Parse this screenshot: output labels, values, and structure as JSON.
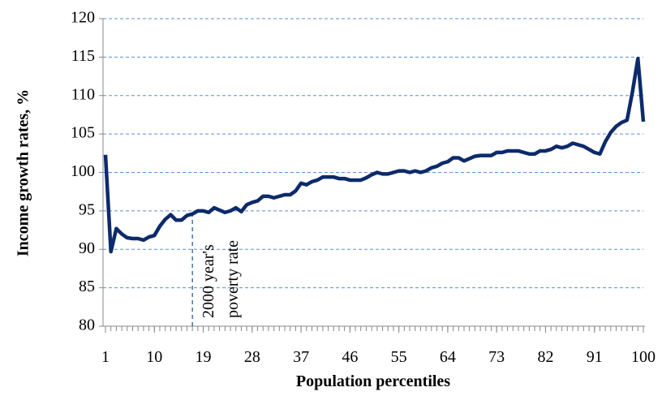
{
  "chart_data": {
    "type": "line",
    "x_label": "Population percentiles",
    "y_label": "Income growth  rates, %",
    "x": [
      1,
      2,
      3,
      4,
      5,
      6,
      7,
      8,
      9,
      10,
      11,
      12,
      13,
      14,
      15,
      16,
      17,
      18,
      19,
      20,
      21,
      22,
      23,
      24,
      25,
      26,
      27,
      28,
      29,
      30,
      31,
      32,
      33,
      34,
      35,
      36,
      37,
      38,
      39,
      40,
      41,
      42,
      43,
      44,
      45,
      46,
      47,
      48,
      49,
      50,
      51,
      52,
      53,
      54,
      55,
      56,
      57,
      58,
      59,
      60,
      61,
      62,
      63,
      64,
      65,
      66,
      67,
      68,
      69,
      70,
      71,
      72,
      73,
      74,
      75,
      76,
      77,
      78,
      79,
      80,
      81,
      82,
      83,
      84,
      85,
      86,
      87,
      88,
      89,
      90,
      91,
      92,
      93,
      94,
      95,
      96,
      97,
      98,
      99,
      100
    ],
    "series": [
      {
        "color": "#0d2a6a",
        "values": [
          102.3,
          89.7,
          92.7,
          92.0,
          91.5,
          91.4,
          91.4,
          91.2,
          91.6,
          91.8,
          93.0,
          93.9,
          94.5,
          93.8,
          93.8,
          94.4,
          94.6,
          95.0,
          95.0,
          94.8,
          95.4,
          95.1,
          94.8,
          95.0,
          95.4,
          94.9,
          95.8,
          96.1,
          96.3,
          96.9,
          96.9,
          96.7,
          96.9,
          97.1,
          97.1,
          97.6,
          98.6,
          98.4,
          98.8,
          99.0,
          99.4,
          99.4,
          99.4,
          99.2,
          99.2,
          99.0,
          99.0,
          99.0,
          99.3,
          99.7,
          100.0,
          99.8,
          99.8,
          100.0,
          100.2,
          100.2,
          100.0,
          100.2,
          100.0,
          100.2,
          100.6,
          100.8,
          101.2,
          101.4,
          101.9,
          101.9,
          101.5,
          101.8,
          102.1,
          102.2,
          102.2,
          102.2,
          102.6,
          102.6,
          102.8,
          102.8,
          102.8,
          102.6,
          102.4,
          102.4,
          102.8,
          102.8,
          103.0,
          103.4,
          103.2,
          103.4,
          103.8,
          103.6,
          103.4,
          103.0,
          102.6,
          102.4,
          104.0,
          105.2,
          106.0,
          106.5,
          106.8,
          110.5,
          114.8,
          106.6
        ]
      }
    ],
    "xlim": [
      1,
      100
    ],
    "xticks": [
      1,
      10,
      19,
      28,
      37,
      46,
      55,
      64,
      73,
      82,
      91,
      100
    ],
    "ylim": [
      80,
      120
    ],
    "yticks": [
      80,
      85,
      90,
      95,
      100,
      105,
      110,
      115,
      120
    ],
    "grid": true,
    "annotation": {
      "lines": [
        "2000 year's",
        "poverty rate"
      ],
      "x": 17
    }
  }
}
